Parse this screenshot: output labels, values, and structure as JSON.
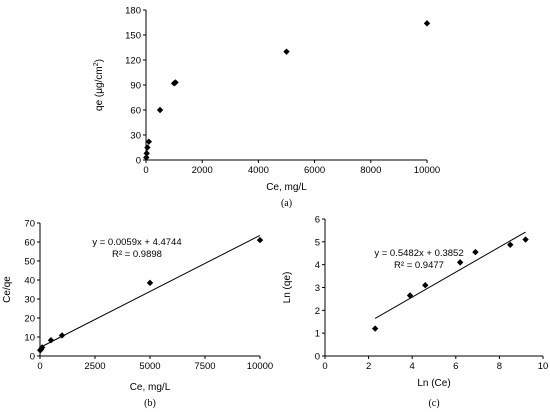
{
  "chart_data": [
    {
      "id": "a",
      "type": "scatter",
      "caption": "(a)",
      "xlabel": "Ce, mg/L",
      "ylabel_parts": [
        "qe (μg/cm",
        "2",
        ")"
      ],
      "xlim": [
        0,
        10000
      ],
      "ylim": [
        0,
        180
      ],
      "xticks": [
        0,
        2000,
        4000,
        6000,
        8000,
        10000
      ],
      "yticks": [
        0,
        30,
        60,
        90,
        120,
        150,
        180
      ],
      "points": [
        {
          "x": 10,
          "y": 3
        },
        {
          "x": 25,
          "y": 8
        },
        {
          "x": 50,
          "y": 15
        },
        {
          "x": 100,
          "y": 22
        },
        {
          "x": 500,
          "y": 60
        },
        {
          "x": 1000,
          "y": 92
        },
        {
          "x": 1050,
          "y": 93
        },
        {
          "x": 5000,
          "y": 130
        },
        {
          "x": 10000,
          "y": 164
        }
      ],
      "grid": false
    },
    {
      "id": "b",
      "type": "scatter",
      "caption": "(b)",
      "xlabel": "Ce, mg/L",
      "ylabel": "Ce/qe",
      "xlim": [
        0,
        10000
      ],
      "ylim": [
        0,
        70
      ],
      "xticks": [
        0,
        2500,
        5000,
        7500,
        10000
      ],
      "yticks": [
        0,
        10,
        20,
        30,
        40,
        50,
        60,
        70
      ],
      "points": [
        {
          "x": 10,
          "y": 3
        },
        {
          "x": 25,
          "y": 3.2
        },
        {
          "x": 50,
          "y": 3.6
        },
        {
          "x": 100,
          "y": 4.5
        },
        {
          "x": 500,
          "y": 8.3
        },
        {
          "x": 1000,
          "y": 10.8
        },
        {
          "x": 5000,
          "y": 38.5
        },
        {
          "x": 10000,
          "y": 61
        }
      ],
      "trendline": {
        "slope": 0.0059,
        "intercept": 4.4744,
        "x_range": [
          0,
          10000
        ]
      },
      "equation": "y = 0.0059x + 4.4744",
      "r2": "R² = 0.9898",
      "grid": false
    },
    {
      "id": "c",
      "type": "scatter",
      "caption": "(c)",
      "xlabel": "Ln (Ce)",
      "ylabel": "Ln (qe)",
      "xlim": [
        0,
        10
      ],
      "ylim": [
        0,
        6
      ],
      "xticks": [
        0,
        2,
        4,
        6,
        8,
        10
      ],
      "yticks": [
        0,
        1,
        2,
        3,
        4,
        5,
        6
      ],
      "points": [
        {
          "x": 2.3,
          "y": 1.2
        },
        {
          "x": 3.9,
          "y": 2.65
        },
        {
          "x": 4.6,
          "y": 3.1
        },
        {
          "x": 6.2,
          "y": 4.1
        },
        {
          "x": 6.9,
          "y": 4.55
        },
        {
          "x": 8.5,
          "y": 4.87
        },
        {
          "x": 9.2,
          "y": 5.1
        }
      ],
      "trendline": {
        "slope": 0.5482,
        "intercept": 0.3852,
        "x_range": [
          2.3,
          9.2
        ]
      },
      "equation": "y = 0.5482x + 0.3852",
      "r2": "R² = 0.9477",
      "grid": false
    }
  ]
}
